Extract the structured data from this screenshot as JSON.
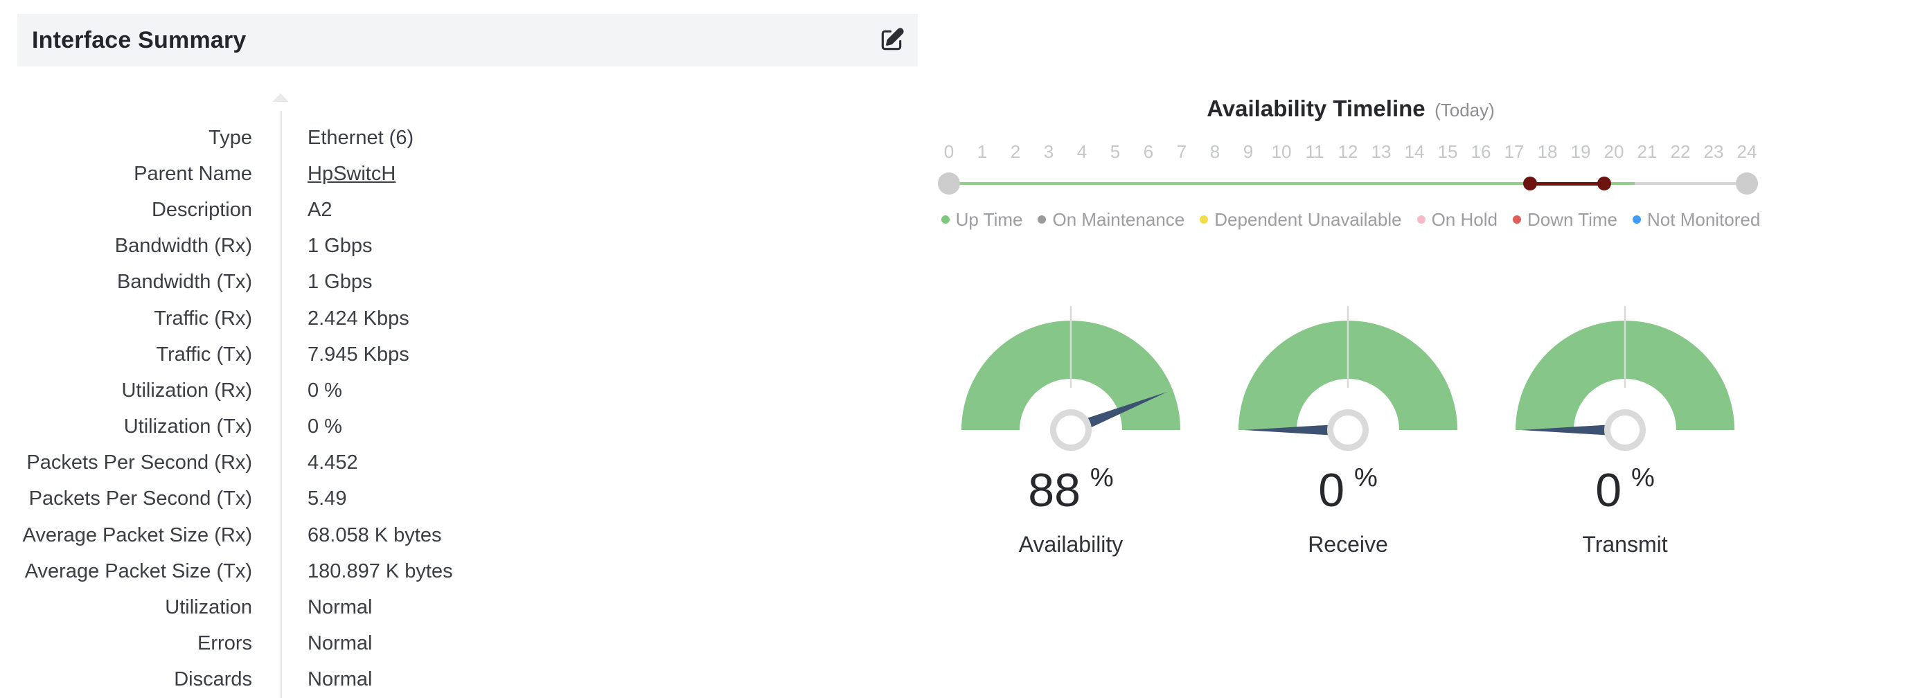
{
  "panel": {
    "title": "Interface Summary"
  },
  "summary": {
    "rows": [
      {
        "label": "Type",
        "value": "Ethernet (6)",
        "link": false
      },
      {
        "label": "Parent Name",
        "value": "HpSwitcH",
        "link": true
      },
      {
        "label": "Description",
        "value": "A2",
        "link": false
      },
      {
        "label": "Bandwidth (Rx)",
        "value": "1 Gbps",
        "link": false
      },
      {
        "label": "Bandwidth (Tx)",
        "value": "1 Gbps",
        "link": false
      },
      {
        "label": "Traffic (Rx)",
        "value": "2.424 Kbps",
        "link": false
      },
      {
        "label": "Traffic (Tx)",
        "value": "7.945 Kbps",
        "link": false
      },
      {
        "label": "Utilization (Rx)",
        "value": "0 %",
        "link": false
      },
      {
        "label": "Utilization (Tx)",
        "value": "0 %",
        "link": false
      },
      {
        "label": "Packets Per Second (Rx)",
        "value": "4.452",
        "link": false
      },
      {
        "label": "Packets Per Second (Tx)",
        "value": "5.49",
        "link": false
      },
      {
        "label": "Average Packet Size (Rx)",
        "value": "68.058 K bytes",
        "link": false
      },
      {
        "label": "Average Packet Size (Tx)",
        "value": "180.897 K bytes",
        "link": false
      },
      {
        "label": "Utilization",
        "value": "Normal",
        "link": false
      },
      {
        "label": "Errors",
        "value": "Normal",
        "link": false
      },
      {
        "label": "Discards",
        "value": "Normal",
        "link": false
      }
    ]
  },
  "timeline": {
    "title": "Availability Timeline",
    "subtitle": "(Today)",
    "hour_start": 0,
    "hour_end": 24,
    "tick_labels": [
      "0",
      "1",
      "2",
      "3",
      "4",
      "5",
      "6",
      "7",
      "8",
      "9",
      "10",
      "11",
      "12",
      "13",
      "14",
      "15",
      "16",
      "17",
      "18",
      "19",
      "20",
      "21",
      "22",
      "23",
      "24"
    ],
    "segments": [
      {
        "status": "up",
        "from": 0,
        "to": 17.48
      },
      {
        "status": "down",
        "from": 17.48,
        "to": 19.7
      },
      {
        "status": "up",
        "from": 19.7,
        "to": 20.63
      },
      {
        "status": "remaining",
        "from": 20.63,
        "to": 24
      }
    ],
    "marker_hours": [
      17.48,
      19.7
    ],
    "colors": {
      "up": "#94cd8b",
      "down": "#6e1410",
      "remaining": "#d5d5d5",
      "handle": "#cccccc"
    }
  },
  "legend": {
    "items": [
      {
        "label": "Up Time",
        "color": "#7cc87f"
      },
      {
        "label": "On Maintenance",
        "color": "#9c9c9c"
      },
      {
        "label": "Dependent Unavailable",
        "color": "#f2dc4a"
      },
      {
        "label": "On Hold",
        "color": "#f6bac6"
      },
      {
        "label": "Down Time",
        "color": "#e05c5a"
      },
      {
        "label": "Not Monitored",
        "color": "#3f9bf8"
      }
    ]
  },
  "gauges": {
    "items": [
      {
        "label": "Availability",
        "value": "88",
        "unit": "%",
        "percent": 88
      },
      {
        "label": "Receive",
        "value": "0",
        "unit": "%",
        "percent": 0
      },
      {
        "label": "Transmit",
        "value": "0",
        "unit": "%",
        "percent": 0
      }
    ],
    "colors": {
      "arc": "#86c789",
      "needle": "#3d5173",
      "hub": "#dadada",
      "tick": "#d9d9d9"
    }
  }
}
